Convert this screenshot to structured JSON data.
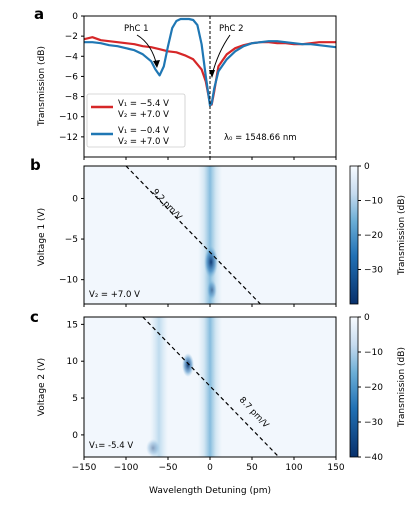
{
  "colors": {
    "series1": "#d62728",
    "series2": "#1f77b4",
    "map_light": "#f7fbff",
    "map_mid": "#9ecae1",
    "map_dark": "#08306b"
  },
  "chart_data": [
    {
      "panel": "a",
      "type": "line",
      "ylabel": "Transmission (dB)",
      "xlim": [
        -150,
        150
      ],
      "ylim": [
        -14,
        0
      ],
      "yticks": [
        "0",
        "−2",
        "−4",
        "−6",
        "−8",
        "−10",
        "−12"
      ],
      "series": [
        {
          "name": "V₁ = −5.4 V / V₂ = +7.0 V",
          "legend_line1": "V₁ = −5.4 V",
          "legend_line2": "V₂ = +7.0 V",
          "x": [
            -150,
            -140,
            -130,
            -120,
            -110,
            -100,
            -90,
            -80,
            -70,
            -60,
            -50,
            -40,
            -30,
            -20,
            -10,
            -5,
            0,
            2,
            5,
            10,
            20,
            30,
            40,
            50,
            60,
            70,
            80,
            90,
            100,
            110,
            120,
            130,
            140,
            150
          ],
          "y": [
            -2.3,
            -2.1,
            -2.4,
            -2.5,
            -2.6,
            -2.7,
            -2.8,
            -3.0,
            -3.1,
            -3.3,
            -3.5,
            -3.6,
            -3.9,
            -4.3,
            -5.3,
            -6.5,
            -8.7,
            -8.8,
            -7.5,
            -5.0,
            -3.8,
            -3.2,
            -2.9,
            -2.7,
            -2.6,
            -2.6,
            -2.7,
            -2.7,
            -2.8,
            -2.8,
            -2.7,
            -2.6,
            -2.6,
            -2.6
          ]
        },
        {
          "name": "V₁ = −0.4 V / V₂ = +7.0 V",
          "legend_line1": "V₁ = −0.4 V",
          "legend_line2": "V₂ = +7.0 V",
          "x": [
            -150,
            -140,
            -130,
            -120,
            -110,
            -100,
            -90,
            -80,
            -70,
            -65,
            -60,
            -55,
            -50,
            -45,
            -40,
            -35,
            -30,
            -25,
            -20,
            -15,
            -10,
            -5,
            0,
            2,
            5,
            10,
            20,
            30,
            40,
            50,
            60,
            70,
            80,
            90,
            100,
            110,
            120,
            130,
            140,
            150
          ],
          "y": [
            -2.6,
            -2.6,
            -2.7,
            -2.9,
            -3.0,
            -3.2,
            -3.4,
            -3.8,
            -4.5,
            -5.3,
            -5.9,
            -5.0,
            -3.0,
            -1.2,
            -0.5,
            -0.3,
            -0.3,
            -0.3,
            -0.4,
            -0.9,
            -2.8,
            -6.0,
            -8.9,
            -8.7,
            -7.2,
            -5.5,
            -4.3,
            -3.5,
            -3.0,
            -2.7,
            -2.6,
            -2.5,
            -2.5,
            -2.6,
            -2.7,
            -2.8,
            -2.8,
            -2.9,
            -3.0,
            -3.1
          ]
        }
      ],
      "annotations": {
        "phc1": "PhC 1",
        "phc2": "PhC 2",
        "lambda": "λ₀ = 1548.66 nm"
      }
    },
    {
      "panel": "b",
      "type": "heatmap",
      "ylabel": "Voltage 1 (V)",
      "xlim": [
        -150,
        150
      ],
      "ylim": [
        -13,
        4
      ],
      "yticks": [
        "0",
        "−5",
        "−10"
      ],
      "dashed_line": {
        "x": [
          -100,
          60
        ],
        "y": [
          4,
          -13
        ]
      },
      "slope_label": "9.2 pm/V",
      "corner_label": "V₂ = +7.0 V",
      "colorbar": {
        "label": "Transmission (dB)",
        "range": [
          -40,
          0
        ],
        "ticks": [
          "0",
          "−10",
          "−20",
          "−30"
        ]
      }
    },
    {
      "panel": "c",
      "type": "heatmap",
      "ylabel": "Voltage 2 (V)",
      "xlabel": "Wavelength Detuning (pm)",
      "xlim": [
        -150,
        150
      ],
      "ylim": [
        -3,
        16
      ],
      "yticks": [
        "15",
        "10",
        "5",
        "0"
      ],
      "xticks": [
        "−150",
        "−100",
        "−50",
        "0",
        "50",
        "100",
        "150"
      ],
      "dashed_line": {
        "x": [
          -80,
          82
        ],
        "y": [
          16,
          -3
        ]
      },
      "slope_label": "8.7 pm/V",
      "corner_label": "V₁= -5.4 V",
      "colorbar": {
        "label": "Transmission (dB)",
        "range": [
          -40,
          0
        ],
        "ticks": [
          "0",
          "−10",
          "−20",
          "−30",
          "−40"
        ]
      }
    }
  ]
}
